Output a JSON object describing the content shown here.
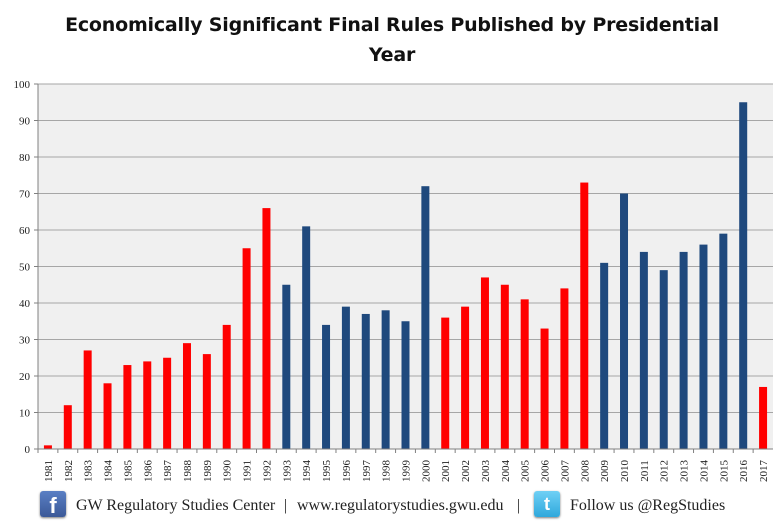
{
  "chart_data": {
    "type": "bar",
    "title": "Economically Significant Final Rules Published by Presidential Year",
    "title_lines": [
      "Economically Significant Final Rules Published by Presidential",
      "Year"
    ],
    "xlabel": "",
    "ylabel": "",
    "ylim": [
      0,
      100
    ],
    "yticks": [
      0,
      10,
      20,
      30,
      40,
      50,
      60,
      70,
      80,
      90,
      100
    ],
    "grid": true,
    "categories": [
      "1981",
      "1982",
      "1983",
      "1984",
      "1985",
      "1986",
      "1987",
      "1988",
      "1989",
      "1990",
      "1991",
      "1992",
      "1993",
      "1994",
      "1995",
      "1996",
      "1997",
      "1998",
      "1999",
      "2000",
      "2001",
      "2002",
      "2003",
      "2004",
      "2005",
      "2006",
      "2007",
      "2008",
      "2009",
      "2010",
      "2011",
      "2012",
      "2013",
      "2014",
      "2015",
      "2016",
      "2017"
    ],
    "values": [
      1,
      12,
      27,
      18,
      23,
      24,
      25,
      29,
      26,
      34,
      55,
      66,
      45,
      61,
      34,
      39,
      37,
      38,
      35,
      72,
      36,
      39,
      47,
      45,
      41,
      33,
      44,
      73,
      51,
      70,
      54,
      49,
      54,
      56,
      59,
      95,
      17
    ],
    "party": [
      "R",
      "R",
      "R",
      "R",
      "R",
      "R",
      "R",
      "R",
      "R",
      "R",
      "R",
      "R",
      "D",
      "D",
      "D",
      "D",
      "D",
      "D",
      "D",
      "D",
      "R",
      "R",
      "R",
      "R",
      "R",
      "R",
      "R",
      "R",
      "D",
      "D",
      "D",
      "D",
      "D",
      "D",
      "D",
      "D",
      "R"
    ],
    "colors": {
      "R": "#ff0000",
      "D": "#1f497d",
      "plot_bg": "#f0f0f0",
      "grid": "#a6a6a6"
    }
  },
  "footer": {
    "facebook_icon_char": "f",
    "twitter_icon_char": "t",
    "org": "GW Regulatory Studies Center",
    "separator": "|",
    "url": "www.regulatorystudies.gwu.edu",
    "follow": "Follow us @RegStudies"
  }
}
